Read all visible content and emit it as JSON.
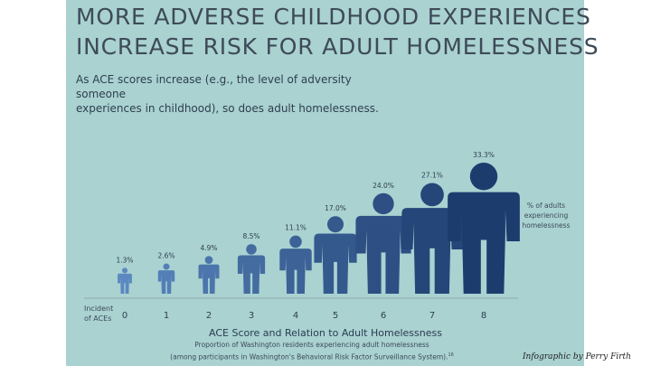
{
  "title_line1": "MORE ADVERSE CHILDHOOD EXPERIENCES",
  "title_line2": "INCREASE RISK FOR ADULT HOMELESSNESS",
  "subtitle_line1": "As ACE scores increase (e.g., the level of adversity someone",
  "subtitle_line2": "experiences in childhood), so does adult homelessness.",
  "footer_title": "ACE Score and Relation to Adult Homelessness",
  "footer_sub1": "Proportion of Washington residents experiencing adult homelessness",
  "footer_sub2": "(among participants in Washington's Behavioral Risk Factor Surveillance System).",
  "footer_ref": "16",
  "credit": "Infographic by Perry Firth",
  "colors": {
    "background_panel": "#a9d2d1",
    "title": "#3e4a58",
    "figure_light": "#5b88c0",
    "figure_dark": "#1d3c6e"
  },
  "chart_data": {
    "type": "bar",
    "mark": "person-silhouette",
    "x_label_lines": [
      "Incident",
      "of ACEs"
    ],
    "categories": [
      "0",
      "1",
      "2",
      "3",
      "4",
      "5",
      "6",
      "7",
      "8"
    ],
    "values": [
      1.3,
      2.6,
      4.9,
      8.5,
      11.1,
      17.0,
      24.0,
      27.1,
      33.3
    ],
    "value_labels": [
      "1.3%",
      "2.6%",
      "4.9%",
      "8.5%",
      "11.1%",
      "17.0%",
      "24.0%",
      "27.1%",
      "33.3%"
    ],
    "legend_lines": [
      "% of adults",
      "experiencing",
      "homelessness"
    ],
    "legend_position": "right"
  }
}
